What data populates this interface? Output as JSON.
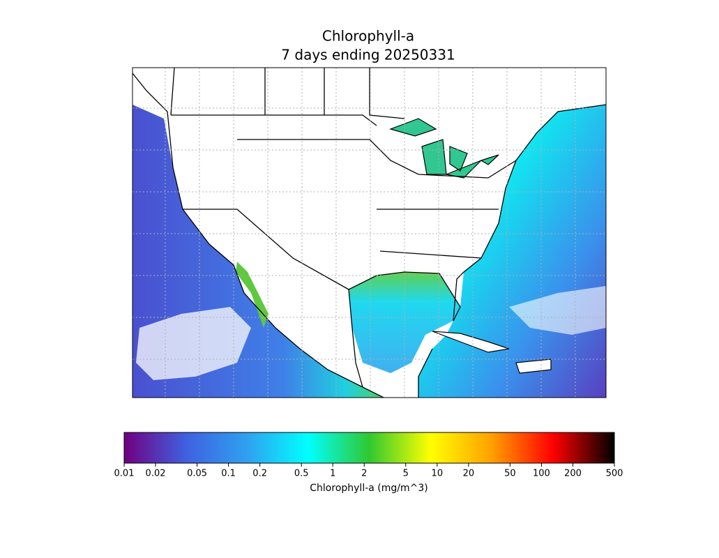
{
  "title": "Chlorophyll-a",
  "subtitle": "7 days ending 20250331",
  "colorbar": {
    "label": "Chlorophyll-a (mg/m^3)",
    "scale": "log",
    "lim": [
      0.01,
      500
    ],
    "ticks": [
      0.01,
      0.02,
      0.05,
      0.1,
      0.2,
      0.5,
      1,
      2,
      5,
      10,
      20,
      50,
      100,
      200,
      500
    ],
    "colors": [
      "#700080",
      "#3f60e0",
      "#2fa0f0",
      "#00ffff",
      "#30c830",
      "#ffff00",
      "#ffa000",
      "#ff0000",
      "#000000"
    ]
  }
}
